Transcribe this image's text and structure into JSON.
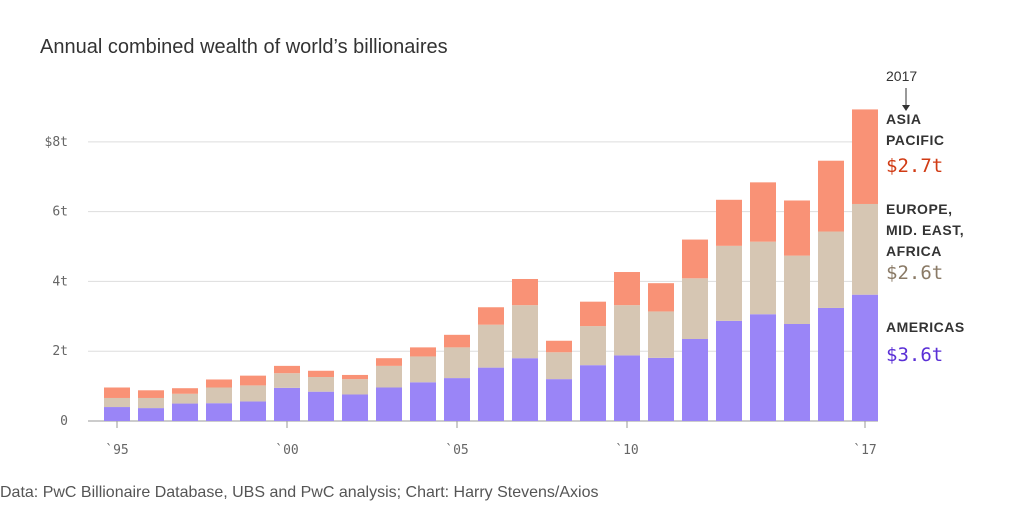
{
  "title": "Annual combined wealth of world’s billionaires",
  "source": "Data: PwC Billionaire Database, UBS and PwC analysis; Chart: Harry Stevens/Axios",
  "colors": {
    "americas": "#9a85f7",
    "europe_mideast_africa": "#d6c6b3",
    "asia_pacific": "#f99276",
    "asia_pacific_text": "#d13b14",
    "europe_text": "#8a7a66",
    "americas_text": "#5a2fd6",
    "grid": "#dddddd"
  },
  "legend": {
    "year": "2017",
    "asia_pacific": {
      "lines": [
        "ASIA",
        "PACIFIC"
      ],
      "value": "$2.7t"
    },
    "europe": {
      "lines": [
        "EUROPE,",
        "MID. EAST,",
        "AFRICA"
      ],
      "value": "$2.6t"
    },
    "americas": {
      "lines": [
        "AMERICAS"
      ],
      "value": "$3.6t"
    }
  },
  "chart_data": {
    "type": "bar",
    "stacked": true,
    "title": "Annual combined wealth of world’s billionaires",
    "xlabel": "",
    "ylabel": "",
    "categories": [
      "1995",
      "1996",
      "1997",
      "1998",
      "1999",
      "2000",
      "2001",
      "2002",
      "2003",
      "2004",
      "2005",
      "2006",
      "2007",
      "2008",
      "2009",
      "2010",
      "2011",
      "2012",
      "2013",
      "2014",
      "2015",
      "2016",
      "2017"
    ],
    "x_tick_labels": [
      "`95",
      "`00",
      "`05",
      "`10",
      "`17"
    ],
    "x_tick_categories": [
      "1995",
      "2000",
      "2005",
      "2010",
      "2017"
    ],
    "y_ticks": [
      0,
      2,
      4,
      6,
      8
    ],
    "y_tick_labels": [
      "0",
      "2t",
      "4t",
      "6t",
      "$8t"
    ],
    "ylim": [
      0,
      9.2
    ],
    "grid": true,
    "legend_placement": "right",
    "series": [
      {
        "name": "AMERICAS",
        "values": [
          0.4,
          0.37,
          0.5,
          0.51,
          0.56,
          0.95,
          0.84,
          0.76,
          0.96,
          1.11,
          1.23,
          1.53,
          1.8,
          1.2,
          1.6,
          1.88,
          1.81,
          2.35,
          2.87,
          3.06,
          2.78,
          3.24,
          3.62
        ]
      },
      {
        "name": "EUROPE, MID. EAST, AFRICA",
        "values": [
          0.26,
          0.29,
          0.28,
          0.45,
          0.46,
          0.42,
          0.42,
          0.44,
          0.62,
          0.74,
          0.88,
          1.23,
          1.52,
          0.77,
          1.12,
          1.44,
          1.33,
          1.74,
          2.15,
          2.08,
          1.96,
          2.19,
          2.6
        ]
      },
      {
        "name": "ASIA PACIFIC",
        "values": [
          0.3,
          0.22,
          0.16,
          0.23,
          0.28,
          0.21,
          0.18,
          0.12,
          0.22,
          0.26,
          0.36,
          0.5,
          0.75,
          0.33,
          0.7,
          0.95,
          0.81,
          1.11,
          1.32,
          1.7,
          1.58,
          2.03,
          2.71
        ]
      }
    ]
  }
}
